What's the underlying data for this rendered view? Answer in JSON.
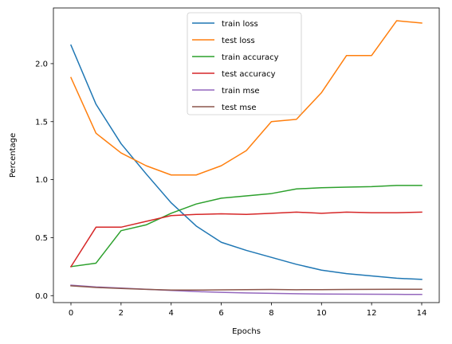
{
  "chart_data": {
    "type": "line",
    "xlabel": "Epochs",
    "ylabel": "Percentage",
    "x": [
      0,
      1,
      2,
      3,
      4,
      5,
      6,
      7,
      8,
      9,
      10,
      11,
      12,
      13,
      14
    ],
    "xlim": [
      -0.7,
      14.7
    ],
    "ylim": [
      -0.06,
      2.48
    ],
    "xticks": [
      0,
      2,
      4,
      6,
      8,
      10,
      12,
      14
    ],
    "yticks": [
      0.0,
      0.5,
      1.0,
      1.5,
      2.0
    ],
    "ytick_labels": [
      "0.0",
      "0.5",
      "1.0",
      "1.5",
      "2.0"
    ],
    "grid": false,
    "legend_position": "top-center",
    "series": [
      {
        "name": "train loss",
        "color": "#1f77b4",
        "values": [
          2.16,
          1.65,
          1.31,
          1.05,
          0.8,
          0.6,
          0.46,
          0.39,
          0.33,
          0.27,
          0.22,
          0.19,
          0.17,
          0.15,
          0.14
        ]
      },
      {
        "name": "test loss",
        "color": "#ff7f0e",
        "values": [
          1.88,
          1.4,
          1.23,
          1.12,
          1.04,
          1.04,
          1.12,
          1.25,
          1.5,
          1.52,
          1.75,
          2.07,
          2.07,
          2.37,
          2.35
        ]
      },
      {
        "name": "train accuracy",
        "color": "#2ca02c",
        "values": [
          0.25,
          0.28,
          0.56,
          0.61,
          0.71,
          0.79,
          0.84,
          0.86,
          0.88,
          0.92,
          0.93,
          0.935,
          0.94,
          0.95,
          0.95
        ]
      },
      {
        "name": "test accuracy",
        "color": "#d62728",
        "values": [
          0.25,
          0.59,
          0.59,
          0.64,
          0.69,
          0.7,
          0.705,
          0.7,
          0.71,
          0.72,
          0.71,
          0.72,
          0.715,
          0.715,
          0.72
        ]
      },
      {
        "name": "train mse",
        "color": "#9467bd",
        "values": [
          0.09,
          0.075,
          0.065,
          0.055,
          0.045,
          0.035,
          0.028,
          0.023,
          0.02,
          0.016,
          0.014,
          0.013,
          0.012,
          0.011,
          0.01
        ]
      },
      {
        "name": "test mse",
        "color": "#8c564b",
        "values": [
          0.085,
          0.07,
          0.062,
          0.054,
          0.048,
          0.048,
          0.05,
          0.052,
          0.053,
          0.051,
          0.052,
          0.053,
          0.054,
          0.055,
          0.055
        ]
      }
    ]
  }
}
